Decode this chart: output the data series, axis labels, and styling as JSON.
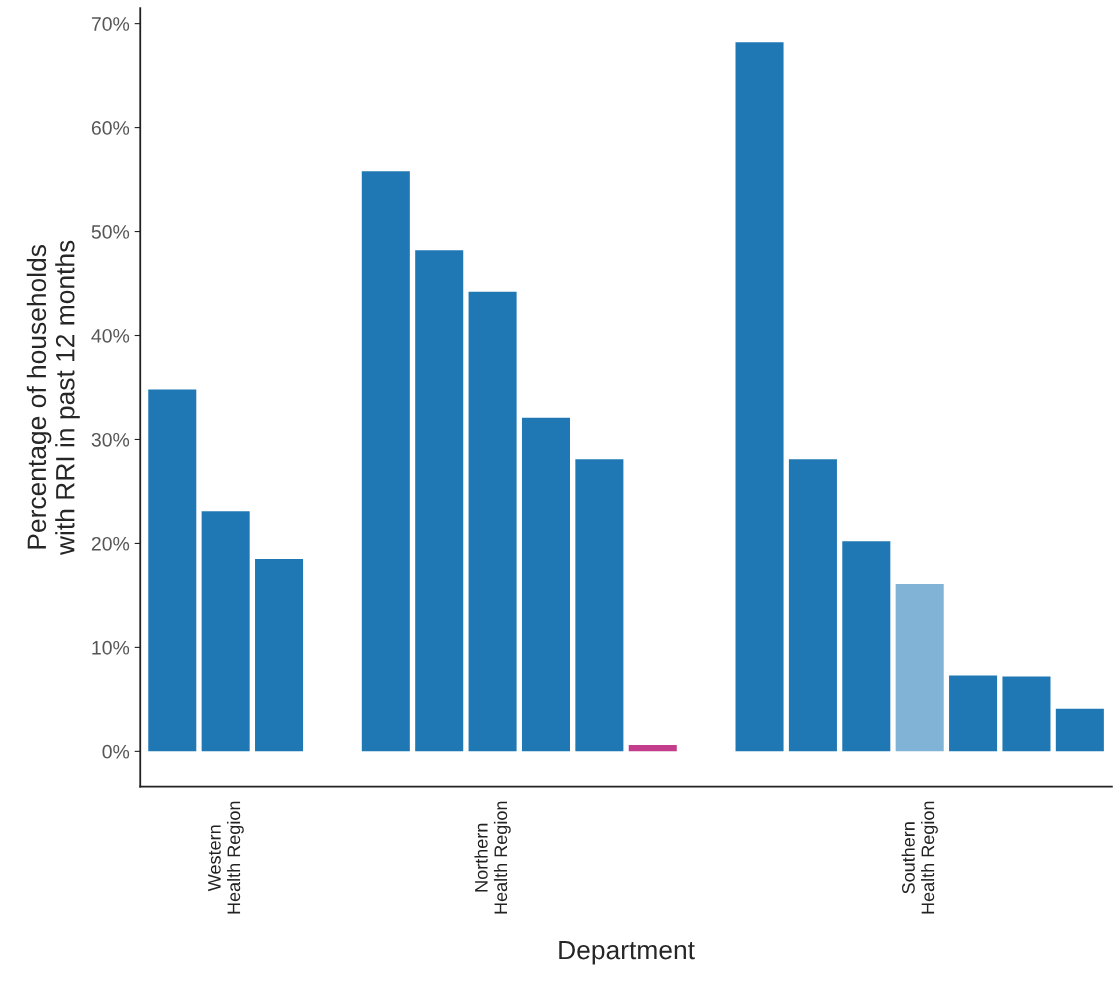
{
  "chart_data": {
    "type": "bar",
    "categories": [
      null,
      "Western\nHealth Region",
      null,
      null,
      null,
      null,
      "Northern\nHealth Region",
      null,
      null,
      null,
      null,
      null,
      null,
      null,
      "Southern\nHealth Region",
      null,
      null,
      null
    ],
    "values": [
      34.8,
      23.1,
      18.5,
      null,
      55.8,
      48.2,
      44.2,
      32.1,
      28.1,
      0.6,
      null,
      68.2,
      28.1,
      20.2,
      16.1,
      7.3,
      7.2,
      4.1
    ],
    "colors": [
      "#1f78b4",
      "#1f78b4",
      "#1f78b4",
      null,
      "#1f78b4",
      "#1f78b4",
      "#1f78b4",
      "#1f78b4",
      "#1f78b4",
      "#c43c8c",
      null,
      "#1f78b4",
      "#1f78b4",
      "#1f78b4",
      "#80b3d6",
      "#1f78b4",
      "#1f78b4",
      "#1f78b4"
    ],
    "xlabel": "Department",
    "ylabel": "Percentage of households\nwith RRI in past 12 months",
    "ylim": [
      -3.4,
      71.5
    ],
    "yticks": [
      {
        "value": 0,
        "label": "0%"
      },
      {
        "value": 10,
        "label": "10%"
      },
      {
        "value": 20,
        "label": "20%"
      },
      {
        "value": 30,
        "label": "30%"
      },
      {
        "value": 40,
        "label": "40%"
      },
      {
        "value": 50,
        "label": "50%"
      },
      {
        "value": 60,
        "label": "60%"
      },
      {
        "value": 70,
        "label": "70%"
      }
    ]
  }
}
